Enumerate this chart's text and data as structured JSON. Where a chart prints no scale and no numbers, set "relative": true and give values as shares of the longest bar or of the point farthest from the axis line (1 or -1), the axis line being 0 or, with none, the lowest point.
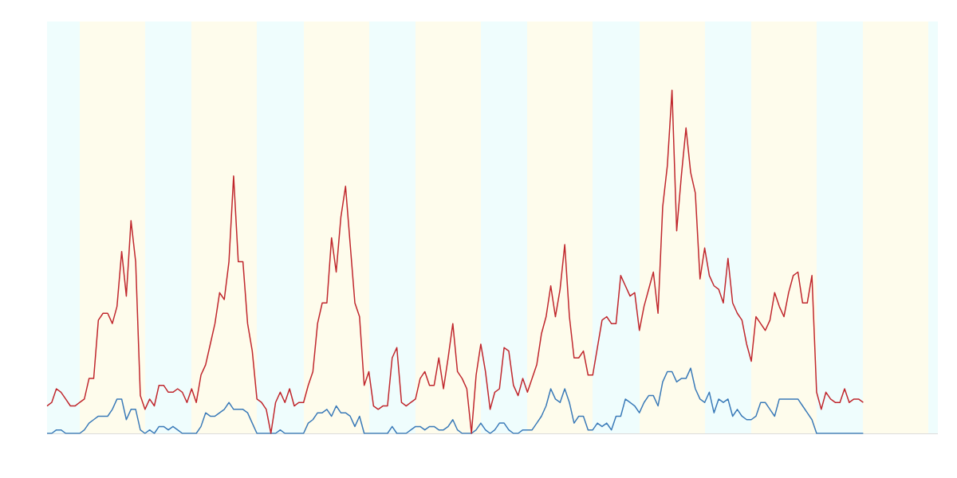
{
  "chart_data": {
    "type": "line",
    "relative": true,
    "legend": false,
    "marker": "none",
    "line_style": "solid",
    "categories": [
      null,
      null,
      null,
      null,
      null,
      null,
      null,
      null,
      null,
      null,
      null,
      null,
      null,
      null,
      null,
      null,
      null,
      null,
      null,
      null,
      null,
      null,
      null,
      null,
      null,
      null,
      null,
      null,
      null,
      null,
      null,
      null,
      null,
      null,
      null,
      null,
      null,
      null,
      null,
      null,
      null,
      null,
      null,
      null,
      null,
      null,
      null,
      null,
      null,
      null,
      null,
      null,
      null,
      null,
      null,
      null,
      null,
      null,
      null,
      null,
      null,
      null,
      null,
      null,
      null,
      null,
      null,
      null,
      null,
      null,
      null,
      null,
      null,
      null,
      null,
      null,
      null,
      null,
      null,
      null,
      null,
      null,
      null,
      null,
      null,
      null,
      null,
      null,
      null,
      null,
      null,
      null,
      null,
      null,
      null,
      null,
      null,
      null,
      null,
      null,
      null,
      null,
      null,
      null,
      null,
      null,
      null,
      null,
      null,
      null,
      null,
      null,
      null,
      null,
      null,
      null,
      null,
      null,
      null,
      null,
      null,
      null,
      null,
      null,
      null,
      null,
      null,
      null,
      null,
      null,
      null,
      null,
      null,
      null,
      null,
      null,
      null,
      null,
      null,
      null,
      null,
      null,
      null,
      null,
      null,
      null,
      null,
      null,
      null,
      null,
      null,
      null,
      null,
      null,
      null,
      null,
      null,
      null,
      null,
      null,
      null,
      null,
      null,
      null,
      null,
      null,
      null,
      null,
      null,
      null,
      null,
      null,
      null,
      null,
      null,
      null,
      null,
      null,
      null,
      null,
      null,
      null,
      null,
      null,
      null,
      null,
      null,
      null,
      null,
      null,
      null,
      null
    ],
    "series": [
      {
        "color": "#c0272d",
        "values": [
          0.08,
          0.09,
          0.13,
          0.12,
          0.1,
          0.08,
          0.08,
          0.09,
          0.1,
          0.16,
          0.16,
          0.33,
          0.35,
          0.35,
          0.32,
          0.37,
          0.53,
          0.4,
          0.62,
          0.5,
          0.11,
          0.07,
          0.1,
          0.08,
          0.14,
          0.14,
          0.12,
          0.12,
          0.13,
          0.12,
          0.09,
          0.13,
          0.09,
          0.17,
          0.2,
          0.26,
          0.32,
          0.41,
          0.39,
          0.5,
          0.75,
          0.5,
          0.5,
          0.32,
          0.24,
          0.1,
          0.09,
          0.07,
          0,
          0.09,
          0.12,
          0.09,
          0.13,
          0.08,
          0.09,
          0.09,
          0.14,
          0.18,
          0.32,
          0.38,
          0.38,
          0.57,
          0.47,
          0.63,
          0.72,
          0.55,
          0.38,
          0.34,
          0.14,
          0.18,
          0.08,
          0.07,
          0.08,
          0.08,
          0.22,
          0.25,
          0.09,
          0.08,
          0.09,
          0.1,
          0.16,
          0.18,
          0.14,
          0.14,
          0.22,
          0.13,
          0.22,
          0.32,
          0.18,
          0.16,
          0.13,
          0,
          0.17,
          0.26,
          0.18,
          0.07,
          0.12,
          0.13,
          0.25,
          0.24,
          0.14,
          0.11,
          0.16,
          0.12,
          0.16,
          0.2,
          0.29,
          0.34,
          0.43,
          0.34,
          0.42,
          0.55,
          0.34,
          0.22,
          0.22,
          0.24,
          0.17,
          0.17,
          0.25,
          0.33,
          0.34,
          0.32,
          0.32,
          0.46,
          0.43,
          0.4,
          0.41,
          0.3,
          0.37,
          0.42,
          0.47,
          0.35,
          0.66,
          0.78,
          1,
          0.59,
          0.75,
          0.89,
          0.76,
          0.7,
          0.45,
          0.54,
          0.46,
          0.43,
          0.42,
          0.38,
          0.51,
          0.38,
          0.35,
          0.33,
          0.26,
          0.21,
          0.34,
          0.32,
          0.3,
          0.33,
          0.41,
          0.37,
          0.34,
          0.41,
          0.46,
          0.47,
          0.38,
          0.38,
          0.46,
          0.12,
          0.07,
          0.12,
          0.1,
          0.09,
          0.09,
          0.13,
          0.09,
          0.1,
          0.1,
          0.09,
          null,
          null,
          null,
          null,
          null,
          null,
          null,
          null,
          null,
          null,
          null,
          null,
          null,
          null,
          null,
          null
        ]
      },
      {
        "color": "#3a7ab8",
        "values": [
          0,
          0,
          0.01,
          0.01,
          0,
          0,
          0,
          0,
          0.01,
          0.03,
          0.04,
          0.05,
          0.05,
          0.05,
          0.07,
          0.1,
          0.1,
          0.04,
          0.07,
          0.07,
          0.01,
          0,
          0.01,
          0,
          0.02,
          0.02,
          0.01,
          0.02,
          0.01,
          0,
          0,
          0,
          0,
          0.02,
          0.06,
          0.05,
          0.05,
          0.06,
          0.07,
          0.09,
          0.07,
          0.07,
          0.07,
          0.06,
          0.03,
          0,
          0,
          0,
          0,
          0,
          0.01,
          0,
          0,
          0,
          0,
          0,
          0.03,
          0.04,
          0.06,
          0.06,
          0.07,
          0.05,
          0.08,
          0.06,
          0.06,
          0.05,
          0.02,
          0.05,
          0,
          0,
          0,
          0,
          0,
          0,
          0.02,
          0,
          0,
          0,
          0.01,
          0.02,
          0.02,
          0.01,
          0.02,
          0.02,
          0.01,
          0.01,
          0.02,
          0.04,
          0.01,
          0,
          0,
          0,
          0.01,
          0.03,
          0.01,
          0,
          0.01,
          0.03,
          0.03,
          0.01,
          0,
          0,
          0.01,
          0.01,
          0.01,
          0.03,
          0.05,
          0.08,
          0.13,
          0.1,
          0.09,
          0.13,
          0.09,
          0.03,
          0.05,
          0.05,
          0.01,
          0.01,
          0.03,
          0.02,
          0.03,
          0.01,
          0.05,
          0.05,
          0.1,
          0.09,
          0.08,
          0.06,
          0.09,
          0.11,
          0.11,
          0.08,
          0.15,
          0.18,
          0.18,
          0.15,
          0.16,
          0.16,
          0.19,
          0.13,
          0.1,
          0.09,
          0.12,
          0.06,
          0.1,
          0.09,
          0.1,
          0.05,
          0.07,
          0.05,
          0.04,
          0.04,
          0.05,
          0.09,
          0.09,
          0.07,
          0.05,
          0.1,
          0.1,
          0.1,
          0.1,
          0.1,
          0.08,
          0.06,
          0.04,
          0,
          0,
          0,
          0,
          0,
          0,
          0,
          0,
          0,
          0,
          0,
          null,
          null,
          null,
          null,
          null,
          null,
          null,
          null,
          null,
          null,
          null,
          null,
          null,
          null,
          null,
          null
        ]
      }
    ]
  }
}
